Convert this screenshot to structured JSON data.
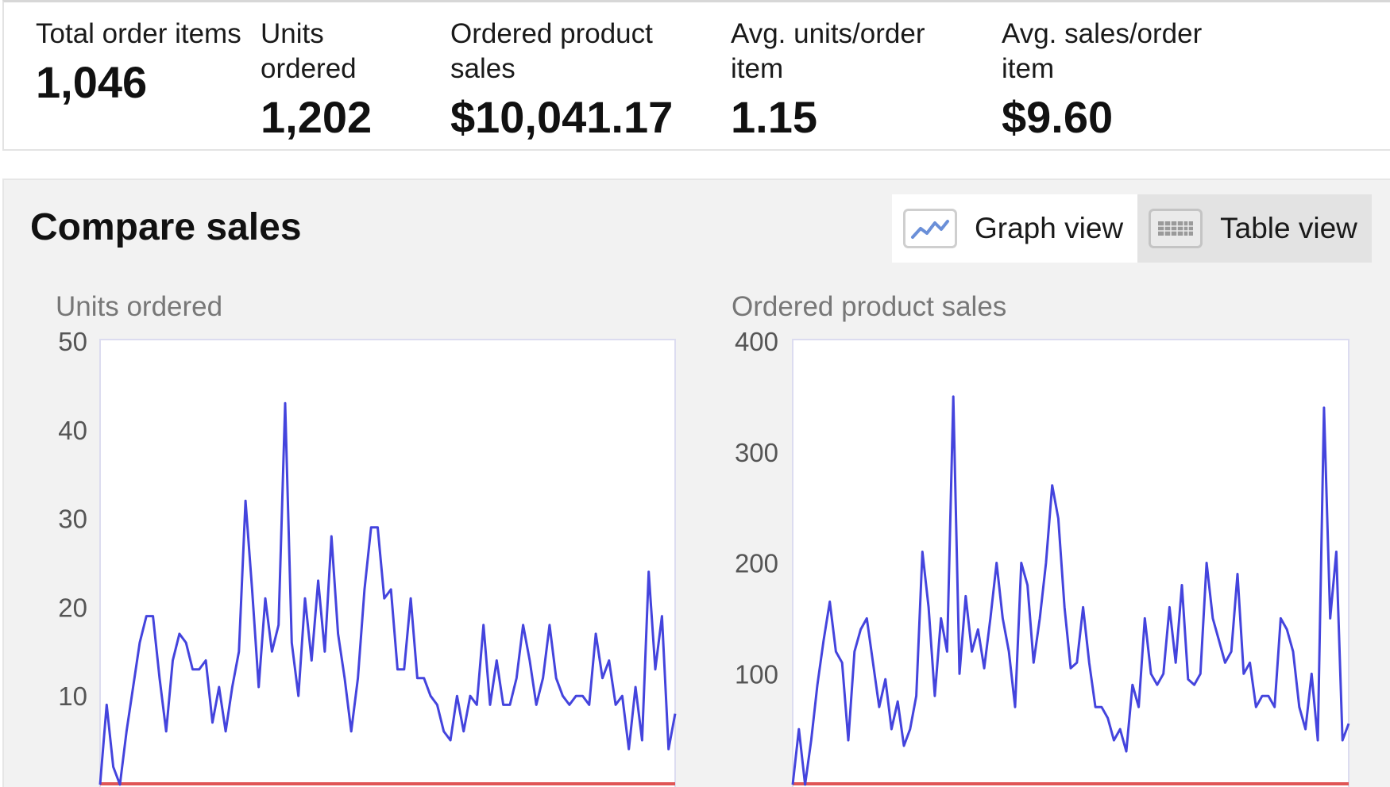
{
  "metrics": [
    {
      "label": "Total order items",
      "value": "1,046"
    },
    {
      "label": "Units ordered",
      "value": "1,202"
    },
    {
      "label": "Ordered product sales",
      "value": "$10,041.17"
    },
    {
      "label": "Avg. units/order item",
      "value": "1.15"
    },
    {
      "label": "Avg. sales/order item",
      "value": "$9.60"
    }
  ],
  "compare": {
    "title": "Compare sales",
    "graph_view_label": "Graph view",
    "table_view_label": "Table view",
    "graph_icon": "line-chart-icon",
    "table_icon": "keyboard-icon"
  },
  "colors": {
    "series_line": "#4444dd",
    "baseline": "#e05555",
    "panel_bg": "#f2f2f2"
  },
  "chart_data": [
    {
      "type": "line",
      "title": "Units ordered",
      "yticks": [
        10,
        20,
        30,
        40,
        50
      ],
      "ylim": [
        0,
        50
      ],
      "series": [
        {
          "values": [
            0,
            9,
            2,
            0,
            6,
            11,
            16,
            19,
            19,
            12,
            6,
            14,
            17,
            16,
            13,
            13,
            14,
            7,
            11,
            6,
            11,
            15,
            32,
            22,
            11,
            21,
            15,
            18,
            43,
            16,
            10,
            21,
            14,
            23,
            15,
            28,
            17,
            12,
            6,
            12,
            22,
            29,
            29,
            21,
            22,
            13,
            13,
            21,
            12,
            12,
            10,
            9,
            6,
            5,
            10,
            6,
            10,
            9,
            18,
            9,
            14,
            9,
            9,
            12,
            18,
            14,
            9,
            12,
            18,
            12,
            10,
            9,
            10,
            10,
            9,
            17,
            12,
            14,
            9,
            10,
            4,
            11,
            5,
            24,
            13,
            19,
            4,
            8
          ]
        }
      ]
    },
    {
      "type": "line",
      "title": "Ordered product sales",
      "yticks": [
        100,
        200,
        300,
        400
      ],
      "ylim": [
        0,
        400
      ],
      "series": [
        {
          "values": [
            0,
            50,
            0,
            40,
            90,
            130,
            165,
            120,
            110,
            40,
            120,
            140,
            150,
            110,
            70,
            95,
            50,
            75,
            35,
            50,
            80,
            210,
            160,
            80,
            150,
            120,
            350,
            100,
            170,
            120,
            140,
            105,
            150,
            200,
            150,
            120,
            70,
            200,
            180,
            110,
            150,
            200,
            270,
            240,
            160,
            105,
            110,
            160,
            110,
            70,
            70,
            60,
            40,
            50,
            30,
            90,
            70,
            150,
            100,
            90,
            100,
            160,
            110,
            180,
            95,
            90,
            100,
            200,
            150,
            130,
            110,
            120,
            190,
            100,
            110,
            70,
            80,
            80,
            70,
            150,
            140,
            120,
            70,
            50,
            100,
            40,
            340,
            150,
            210,
            40,
            55
          ]
        }
      ]
    }
  ]
}
